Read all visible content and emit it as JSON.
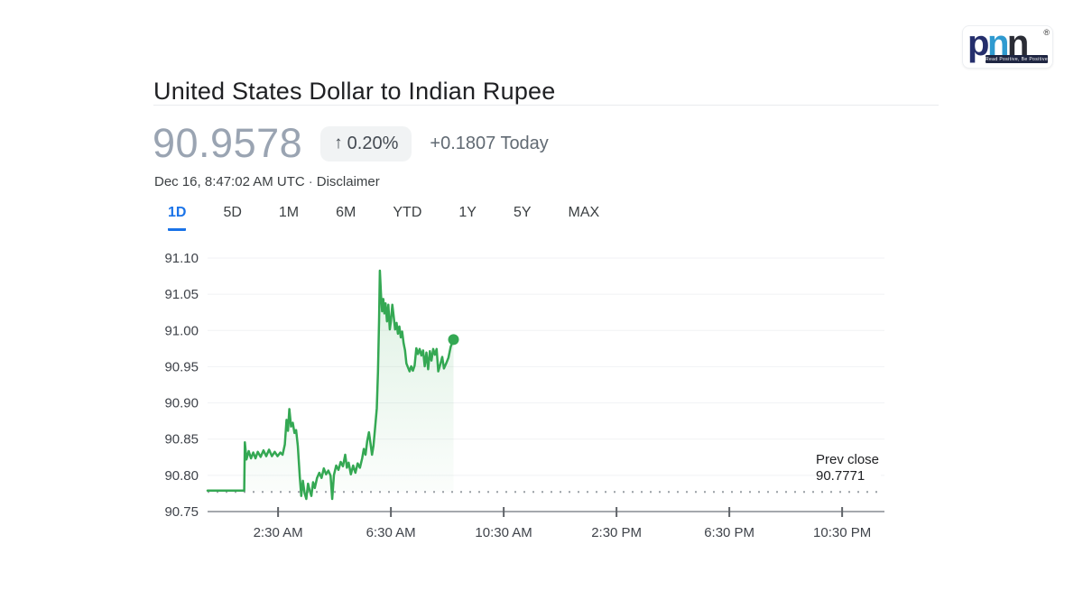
{
  "header": {
    "title": "United States Dollar to Indian Rupee",
    "price": "90.9578",
    "badge": {
      "arrow": "↑",
      "percent": "0.20%"
    },
    "change_today": "+0.1807 Today",
    "timestamp": "Dec 16, 8:47:02 AM UTC",
    "dot_separator": "·",
    "disclaimer_link": "Disclaimer"
  },
  "range_tabs": [
    {
      "label": "1D",
      "active": true
    },
    {
      "label": "5D",
      "active": false
    },
    {
      "label": "1M",
      "active": false
    },
    {
      "label": "6M",
      "active": false
    },
    {
      "label": "YTD",
      "active": false
    },
    {
      "label": "1Y",
      "active": false
    },
    {
      "label": "5Y",
      "active": false
    },
    {
      "label": "MAX",
      "active": false
    }
  ],
  "chart_data": {
    "type": "line",
    "pair": "USD / INR",
    "interval": "1D",
    "line_color": "#34a853",
    "fill_color": "#34a853",
    "accent_blue": "#1a73e8",
    "grid_color": "#f1f2f4",
    "axis_line_color": "#a5a8ad",
    "tick_color": "#5f6368",
    "axis_label_color": "#3f434a",
    "dotted_line_color": "#9aa0a6",
    "ylim": [
      90.75,
      91.1
    ],
    "y_ticks": [
      "91.10",
      "91.05",
      "91.00",
      "90.95",
      "90.90",
      "90.85",
      "90.80",
      "90.75"
    ],
    "x_range_hours": [
      0,
      24
    ],
    "x_ticks": [
      {
        "hour": 2.5,
        "label": "2:30 AM"
      },
      {
        "hour": 6.5,
        "label": "6:30 AM"
      },
      {
        "hour": 10.5,
        "label": "10:30 AM"
      },
      {
        "hour": 14.5,
        "label": "2:30 PM"
      },
      {
        "hour": 18.5,
        "label": "6:30 PM"
      },
      {
        "hour": 22.5,
        "label": "10:30 PM"
      }
    ],
    "prev_close": {
      "label": "Prev close",
      "value": "90.7771",
      "numeric": 90.7771
    },
    "series": [
      {
        "name": "USD to INR",
        "points": [
          [
            0,
            90.779
          ],
          [
            1.3,
            90.779
          ],
          [
            1.32,
            90.8455
          ],
          [
            1.38,
            90.822
          ],
          [
            1.46,
            90.8335
          ],
          [
            1.54,
            90.8235
          ],
          [
            1.62,
            90.8315
          ],
          [
            1.7,
            90.8235
          ],
          [
            1.78,
            90.8325
          ],
          [
            1.88,
            90.8255
          ],
          [
            1.98,
            90.8345
          ],
          [
            2.08,
            90.8265
          ],
          [
            2.18,
            90.8355
          ],
          [
            2.28,
            90.8265
          ],
          [
            2.38,
            90.8325
          ],
          [
            2.48,
            90.8265
          ],
          [
            2.58,
            90.8315
          ],
          [
            2.66,
            90.8285
          ],
          [
            2.74,
            90.8425
          ],
          [
            2.8,
            90.8765
          ],
          [
            2.85,
            90.8615
          ],
          [
            2.9,
            90.8915
          ],
          [
            2.96,
            90.8675
          ],
          [
            3.02,
            90.8725
          ],
          [
            3.08,
            90.8585
          ],
          [
            3.14,
            90.8625
          ],
          [
            3.2,
            90.8405
          ],
          [
            3.27,
            90.7975
          ],
          [
            3.32,
            90.7715
          ],
          [
            3.38,
            90.7925
          ],
          [
            3.44,
            90.7755
          ],
          [
            3.5,
            90.7675
          ],
          [
            3.56,
            90.7885
          ],
          [
            3.62,
            90.7795
          ],
          [
            3.68,
            90.7715
          ],
          [
            3.74,
            90.7905
          ],
          [
            3.8,
            90.7825
          ],
          [
            3.88,
            90.7965
          ],
          [
            3.96,
            90.8035
          ],
          [
            4.04,
            90.7965
          ],
          [
            4.12,
            90.8095
          ],
          [
            4.2,
            90.8015
          ],
          [
            4.28,
            90.8065
          ],
          [
            4.36,
            90.7995
          ],
          [
            4.42,
            90.7675
          ],
          [
            4.48,
            90.8005
          ],
          [
            4.56,
            90.8135
          ],
          [
            4.64,
            90.8075
          ],
          [
            4.72,
            90.8185
          ],
          [
            4.8,
            90.8125
          ],
          [
            4.88,
            90.8285
          ],
          [
            4.94,
            90.8105
          ],
          [
            5.0,
            90.8175
          ],
          [
            5.08,
            90.8015
          ],
          [
            5.16,
            90.8135
          ],
          [
            5.24,
            90.8035
          ],
          [
            5.32,
            90.8165
          ],
          [
            5.4,
            90.8105
          ],
          [
            5.48,
            90.8235
          ],
          [
            5.54,
            90.8365
          ],
          [
            5.6,
            90.8285
          ],
          [
            5.66,
            90.8475
          ],
          [
            5.72,
            90.8595
          ],
          [
            5.78,
            90.8435
          ],
          [
            5.83,
            90.8285
          ],
          [
            5.88,
            90.8405
          ],
          [
            5.94,
            90.8655
          ],
          [
            6.0,
            90.8925
          ],
          [
            6.04,
            90.9425
          ],
          [
            6.08,
            91.0125
          ],
          [
            6.11,
            91.0825
          ],
          [
            6.15,
            91.0485
          ],
          [
            6.19,
            91.0265
          ],
          [
            6.23,
            91.0435
          ],
          [
            6.27,
            91.0235
          ],
          [
            6.31,
            91.0375
          ],
          [
            6.36,
            91.0125
          ],
          [
            6.41,
            91.0355
          ],
          [
            6.46,
            91.0015
          ],
          [
            6.5,
            91.0125
          ],
          [
            6.55,
            91.0355
          ],
          [
            6.6,
            91.0185
          ],
          [
            6.65,
            91.0015
          ],
          [
            6.7,
            91.0105
          ],
          [
            6.75,
            90.9955
          ],
          [
            6.8,
            91.0055
          ],
          [
            6.85,
            90.9905
          ],
          [
            6.9,
            90.9985
          ],
          [
            6.95,
            90.9825
          ],
          [
            7.0,
            90.9725
          ],
          [
            7.05,
            90.9545
          ],
          [
            7.1,
            90.9495
          ],
          [
            7.16,
            90.9435
          ],
          [
            7.22,
            90.9505
          ],
          [
            7.28,
            90.9445
          ],
          [
            7.34,
            90.9515
          ],
          [
            7.4,
            90.9755
          ],
          [
            7.46,
            90.9675
          ],
          [
            7.52,
            90.9745
          ],
          [
            7.58,
            90.9655
          ],
          [
            7.64,
            90.9725
          ],
          [
            7.7,
            90.9505
          ],
          [
            7.76,
            90.9695
          ],
          [
            7.82,
            90.9465
          ],
          [
            7.88,
            90.9715
          ],
          [
            7.94,
            90.9585
          ],
          [
            8.0,
            90.9745
          ],
          [
            8.06,
            90.9665
          ],
          [
            8.12,
            90.9745
          ],
          [
            8.18,
            90.9435
          ],
          [
            8.24,
            90.9515
          ],
          [
            8.32,
            90.9635
          ],
          [
            8.38,
            90.9475
          ],
          [
            8.46,
            90.9545
          ],
          [
            8.54,
            90.9625
          ],
          [
            8.62,
            90.9775
          ],
          [
            8.72,
            90.9875
          ]
        ]
      }
    ]
  },
  "brand_logo": {
    "letters": [
      "p",
      "n",
      "n"
    ],
    "registered_mark": "®",
    "tagline": "Read Positive, Be Positive",
    "colors": {
      "letter_p": "#242e6c",
      "letter_n1": "#2f9ad0",
      "letter_n2": "#2a2c35",
      "tagline_bar": "#1f2642"
    }
  }
}
